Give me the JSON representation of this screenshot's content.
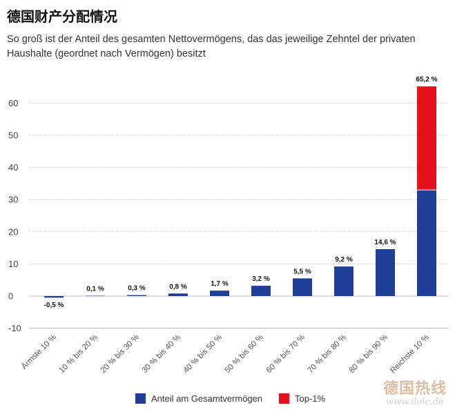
{
  "header": {
    "title": "德国财产分配情况",
    "subtitle": "So groß ist der Anteil des gesamten Nettovermögens, das das jeweilige Zehntel der privaten Haushalte (geordnet nach Vermögen) besitzt"
  },
  "chart_data": {
    "type": "bar",
    "stacked": true,
    "categories": [
      "Ärmste 10 %",
      "10 % bis 20 %",
      "20 % bis 30 %",
      "30 % bis 40 %",
      "40 % bis 50 %",
      "50 % bis 60 %",
      "60 % bis 70 %",
      "70 % bis 80 %",
      "80 % bis 90 %",
      "Reichste 10 %"
    ],
    "series": [
      {
        "name": "Anteil am Gesamtvermögen",
        "color": "#1f3f99",
        "values": [
          -0.5,
          0.1,
          0.3,
          0.8,
          1.7,
          3.2,
          5.5,
          9.2,
          14.6,
          33.0
        ]
      },
      {
        "name": "Top-1%",
        "color": "#e3111b",
        "values": [
          0,
          0,
          0,
          0,
          0,
          0,
          0,
          0,
          0,
          32.2
        ]
      }
    ],
    "data_labels": [
      "-0,5 %",
      "0,1 %",
      "0,3 %",
      "0,8 %",
      "1,7 %",
      "3,2 %",
      "5,5 %",
      "9,2 %",
      "14,6 %",
      "65,2 %"
    ],
    "y_ticks": [
      -10,
      0,
      10,
      20,
      30,
      40,
      50,
      60
    ],
    "ylim": [
      -10,
      65.2
    ],
    "grid": true,
    "legend_position": "bottom",
    "xlabel": "",
    "ylabel": ""
  },
  "legend": {
    "items": [
      {
        "label": "Anteil am Gesamtvermögen",
        "color": "#1f3f99"
      },
      {
        "label": "Top-1%",
        "color": "#e3111b"
      }
    ]
  },
  "watermark": {
    "logo_text": "德国热线",
    "url": "www.dolc.de"
  }
}
